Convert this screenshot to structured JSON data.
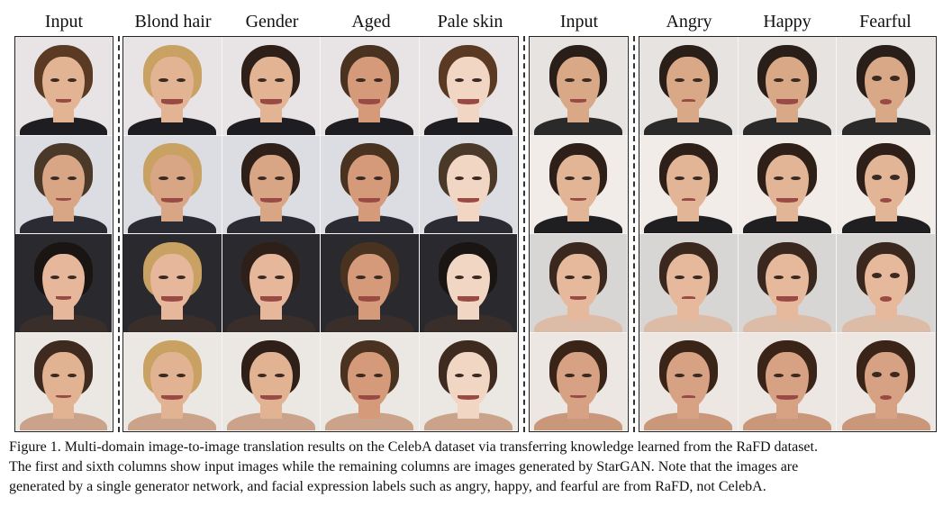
{
  "headers": {
    "celeba": [
      "Input",
      "Blond hair",
      "Gender",
      "Aged",
      "Pale skin"
    ],
    "rafd": [
      "Input",
      "Angry",
      "Happy",
      "Fearful"
    ]
  },
  "caption": {
    "lines": [
      "Figure 1. Multi-domain image-to-image translation results on the CelebA dataset via transferring knowledge learned from the RaFD dataset.",
      "The first and sixth columns show input images while the remaining columns are images generated by StarGAN. Note that the images are",
      "generated by a single generator network, and facial expression labels such as angry, happy, and fearful are from RaFD, not CelebA."
    ]
  },
  "photos": {
    "rows": [
      {
        "bg": "#e8e4e6",
        "hair": "#5a3a22",
        "skin": "#e2b493",
        "cloth": "#1d1d22"
      },
      {
        "bg": "#dcdde3",
        "hair": "#4a3828",
        "skin": "#d9a685",
        "cloth": "#2b2b33"
      },
      {
        "bg": "#2a2a2e",
        "hair": "#1a1412",
        "skin": "#e6b79a",
        "cloth": "#3a2e2a"
      },
      {
        "bg": "#ebe7e2",
        "hair": "#3e2a1e",
        "skin": "#e2b392",
        "cloth": "#caa38a"
      }
    ],
    "celeba_variants": [
      {
        "hair": null,
        "skin": null
      },
      {
        "hair": "#c9a263",
        "skin": null
      },
      {
        "hair": "#2e2018",
        "skin": null
      },
      {
        "hair": "#4a3220",
        "skin": "#d59a79"
      },
      {
        "hair": null,
        "skin": "#f1d6c4"
      }
    ],
    "rafd_rows": [
      {
        "bg": "#e7e3e0",
        "hair": "#2a1e18",
        "skin": "#d9a887",
        "cloth": "#2a2a2a"
      },
      {
        "bg": "#f1ece8",
        "hair": "#2e2018",
        "skin": "#e2b597",
        "cloth": "#1f1f22"
      },
      {
        "bg": "#d8d6d4",
        "hair": "#3a281e",
        "skin": "#e6b99c",
        "cloth": "#dcbca6"
      },
      {
        "bg": "#ece7e2",
        "hair": "#3a2418",
        "skin": "#d7a283",
        "cloth": "#c9977a"
      }
    ],
    "rafd_expressions": [
      "neutral",
      "angry",
      "happy",
      "fearful"
    ]
  }
}
